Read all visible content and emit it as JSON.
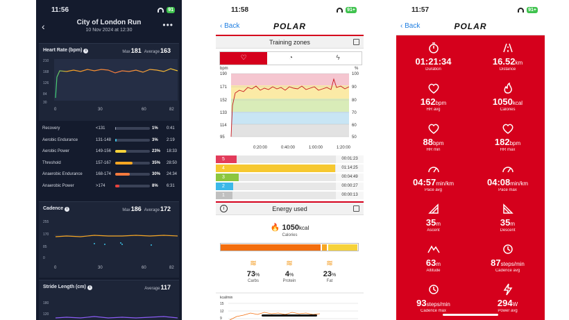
{
  "phone1": {
    "status_time": "11:56",
    "battery": "91",
    "title": "City of London Run",
    "date": "10 Nov 2024 at 12:30",
    "heart_rate": {
      "label": "Heart Rate (bpm)",
      "max_label": "Max",
      "max": "181",
      "avg_label": "Average",
      "avg": "163",
      "y_ticks": [
        "210",
        "168",
        "126",
        "84",
        "30"
      ],
      "x_ticks": [
        "0",
        "30",
        "60",
        "82"
      ]
    },
    "zones": [
      {
        "name": "Recovery",
        "range": "<131",
        "pct": "1%",
        "time": "0:41",
        "fill": 0.01,
        "color": "#9aa3b5"
      },
      {
        "name": "Aerobic Endurance",
        "range": "131-148",
        "pct": "3%",
        "time": "2:19",
        "fill": 0.03,
        "color": "#3cc2e6"
      },
      {
        "name": "Aerobic Power",
        "range": "149-156",
        "pct": "23%",
        "time": "18:33",
        "fill": 0.23,
        "color": "#f6d23a"
      },
      {
        "name": "Threshold",
        "range": "157-167",
        "pct": "35%",
        "time": "28:50",
        "fill": 0.35,
        "color": "#f6a623"
      },
      {
        "name": "Anaerobic Endurance",
        "range": "168-174",
        "pct": "30%",
        "time": "24:34",
        "fill": 0.3,
        "color": "#f47a3e"
      },
      {
        "name": "Anaerobic Power",
        "range": ">174",
        "pct": "8%",
        "time": "6:31",
        "fill": 0.08,
        "color": "#e8413c"
      }
    ],
    "cadence": {
      "label": "Cadence",
      "max_label": "Max",
      "max": "186",
      "avg_label": "Average",
      "avg": "172",
      "y_ticks": [
        "255",
        "170",
        "85",
        "0"
      ],
      "x_ticks": [
        "0",
        "30",
        "60",
        "82"
      ]
    },
    "stride": {
      "label": "Stride Length (cm)",
      "avg_label": "Average",
      "avg": "117",
      "y_ticks": [
        "180",
        "120"
      ]
    }
  },
  "phone2": {
    "status_time": "11:58",
    "battery": "91+",
    "back": "Back",
    "logo": "POLAR",
    "section_title": "Training zones",
    "chart": {
      "y_left_unit": "bpm",
      "y_right_unit": "%",
      "y_left": [
        "190",
        "171",
        "152",
        "133",
        "114",
        "95"
      ],
      "y_right": [
        "100",
        "90",
        "80",
        "70",
        "60",
        "50"
      ],
      "x_ticks": [
        "0:20:00",
        "0:40:00",
        "1:00:00",
        "1:20:00"
      ]
    },
    "zone_rows": [
      {
        "n": "5",
        "time": "00:01:23",
        "fill": 0.04,
        "color": "#e23b5a"
      },
      {
        "n": "4",
        "time": "01:14:25",
        "fill": 0.99,
        "color": "#f6c830"
      },
      {
        "n": "3",
        "time": "00:04:49",
        "fill": 0.06,
        "color": "#8cc63e"
      },
      {
        "n": "2",
        "time": "00:00:27",
        "fill": 0.01,
        "color": "#3cb8e8"
      },
      {
        "n": "1",
        "time": "00:00:13",
        "fill": 0.0,
        "color": "#c0c0c0"
      }
    ],
    "energy_title": "Energy used",
    "energy_value": "1050",
    "energy_unit": "kcal",
    "energy_label": "Calories",
    "energy_split": {
      "carbs": 0.73,
      "protein": 0.04,
      "fat": 0.23
    },
    "subs": [
      {
        "v": "73",
        "u": "%",
        "l": "Carbs"
      },
      {
        "v": "4",
        "u": "%",
        "l": "Protein"
      },
      {
        "v": "23",
        "u": "%",
        "l": "Fat"
      }
    ],
    "mini_label": "kcal/min",
    "mini_y": [
      "15",
      "12",
      "9"
    ]
  },
  "phone3": {
    "status_time": "11:57",
    "battery": "91+",
    "back": "Back",
    "logo": "POLAR",
    "stats": [
      {
        "icon": "stopwatch-icon",
        "v": "01:21:34",
        "u": "",
        "l": "Duration"
      },
      {
        "icon": "distance-icon",
        "v": "16.52",
        "u": "km",
        "l": "Distance"
      },
      {
        "icon": "heart-avg-icon",
        "v": "162",
        "u": "bpm",
        "l": "HR avg"
      },
      {
        "icon": "flame-icon",
        "v": "1050",
        "u": "kcal",
        "l": "Calories"
      },
      {
        "icon": "heart-min-icon",
        "v": "88",
        "u": "bpm",
        "l": "HR min"
      },
      {
        "icon": "heart-max-icon",
        "v": "182",
        "u": "bpm",
        "l": "HR max"
      },
      {
        "icon": "pace-avg-icon",
        "v": "04:57",
        "u": "min/km",
        "l": "Pace avg"
      },
      {
        "icon": "pace-max-icon",
        "v": "04:08",
        "u": "min/km",
        "l": "Pace max"
      },
      {
        "icon": "ascent-icon",
        "v": "35",
        "u": "m",
        "l": "Ascent"
      },
      {
        "icon": "descent-icon",
        "v": "35",
        "u": "m",
        "l": "Descent"
      },
      {
        "icon": "altitude-icon",
        "v": "63",
        "u": "m",
        "l": "Altitude"
      },
      {
        "icon": "cadence-avg-icon",
        "v": "87",
        "u": "steps/min",
        "l": "Cadence avg"
      },
      {
        "icon": "cadence-max-icon",
        "v": "93",
        "u": "steps/min",
        "l": "Cadence max"
      },
      {
        "icon": "power-avg-icon",
        "v": "294",
        "u": "W",
        "l": "Power avg"
      }
    ]
  }
}
